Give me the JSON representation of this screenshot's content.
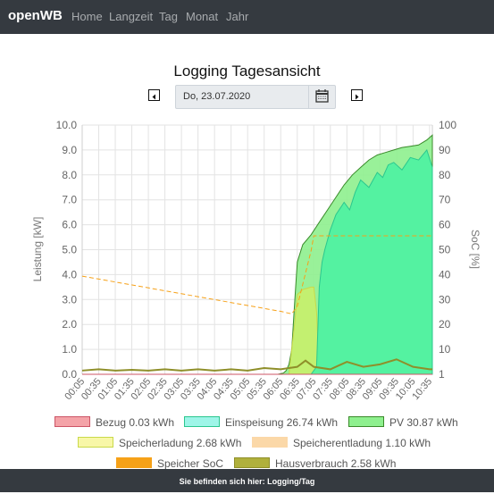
{
  "navbar": {
    "brand": "openWB",
    "links": [
      "Home",
      "Langzeit",
      "Tag",
      "Monat",
      "Jahr"
    ]
  },
  "page": {
    "title": "Logging Tagesansicht",
    "date_value": "Do, 23.07.2020"
  },
  "footer": {
    "text": "Sie befinden sich hier: Logging/Tag"
  },
  "colors": {
    "bezug": "#f4a3a8",
    "einspeisung": "#9ef5e8",
    "pv": "#8ef08e",
    "speicherladung": "#f8f7a8",
    "speicherentladung": "#fbd8a8",
    "speicher_soc": "#f6a118",
    "hausverbrauch": "#b0b03c"
  },
  "legend": [
    {
      "label": "Bezug 0.03 kWh",
      "color_key": "bezug"
    },
    {
      "label": "Einspeisung 26.74 kWh",
      "color_key": "einspeisung"
    },
    {
      "label": "PV 30.87 kWh",
      "color_key": "pv"
    },
    {
      "label": "Speicherladung 2.68 kWh",
      "color_key": "speicherladung"
    },
    {
      "label": "Speicherentladung 1.10 kWh",
      "color_key": "speicherentladung"
    },
    {
      "label": "Speicher SoC",
      "color_key": "speicher_soc"
    },
    {
      "label": "Hausverbrauch 2.58 kWh",
      "color_key": "hausverbrauch"
    }
  ],
  "chart_data": {
    "type": "area",
    "ylabel_left": "Leistung [kW]",
    "ylabel_right": "SoC [%]",
    "ylim_left": [
      0,
      10
    ],
    "ylim_right": [
      1,
      100
    ],
    "yticks_left": [
      "0.0",
      "1.0",
      "2.0",
      "3.0",
      "4.0",
      "5.0",
      "6.0",
      "7.0",
      "8.0",
      "9.0",
      "10.0"
    ],
    "yticks_right": [
      "1",
      "10",
      "20",
      "30",
      "40",
      "50",
      "60",
      "70",
      "80",
      "90",
      "100"
    ],
    "x_tick_labels": [
      "00:05",
      "00:35",
      "01:05",
      "01:35",
      "02:05",
      "02:35",
      "03:05",
      "03:35",
      "04:05",
      "04:35",
      "05:05",
      "05:35",
      "06:05",
      "06:35",
      "07:05",
      "07:35",
      "08:05",
      "08:35",
      "09:05",
      "09:35",
      "10:05",
      "10:35"
    ],
    "grid": true,
    "legend_position": "bottom",
    "series": [
      {
        "name": "PV",
        "color_key": "pv",
        "x": [
          "00:05",
          "06:00",
          "06:10",
          "06:15",
          "06:20",
          "06:25",
          "06:30",
          "06:35",
          "06:45",
          "07:00",
          "07:15",
          "07:30",
          "07:45",
          "08:00",
          "08:15",
          "08:30",
          "08:45",
          "09:00",
          "09:15",
          "09:30",
          "09:45",
          "10:00",
          "10:15",
          "10:30",
          "10:40"
        ],
        "values": [
          0.0,
          0.0,
          0.05,
          0.15,
          0.4,
          1.0,
          2.8,
          4.5,
          5.2,
          5.6,
          6.1,
          6.6,
          7.1,
          7.6,
          8.0,
          8.3,
          8.6,
          8.8,
          8.9,
          9.0,
          9.1,
          9.15,
          9.2,
          9.4,
          9.6
        ]
      },
      {
        "name": "Einspeisung",
        "color_key": "einspeisung",
        "x": [
          "00:05",
          "07:00",
          "07:10",
          "07:15",
          "07:20",
          "07:25",
          "07:35",
          "07:45",
          "08:00",
          "08:10",
          "08:20",
          "08:30",
          "08:45",
          "09:00",
          "09:10",
          "09:20",
          "09:30",
          "09:45",
          "10:00",
          "10:15",
          "10:30",
          "10:40"
        ],
        "values": [
          0.0,
          0.0,
          0.3,
          3.5,
          4.5,
          5.0,
          5.8,
          6.4,
          6.9,
          6.6,
          7.3,
          7.8,
          7.5,
          8.1,
          7.9,
          8.4,
          8.5,
          8.2,
          8.7,
          8.6,
          9.0,
          8.3
        ]
      },
      {
        "name": "Speicherladung",
        "color_key": "speicherladung",
        "x": [
          "00:05",
          "06:20",
          "06:30",
          "06:35",
          "06:45",
          "07:00",
          "07:05",
          "07:10",
          "07:15",
          "10:40"
        ],
        "values": [
          0.0,
          0.0,
          2.0,
          3.2,
          3.4,
          3.5,
          3.5,
          2.5,
          0.0,
          0.0
        ]
      },
      {
        "name": "Hausverbrauch",
        "color_key": "hausverbrauch",
        "x": [
          "00:05",
          "00:35",
          "01:05",
          "01:35",
          "02:05",
          "02:35",
          "03:05",
          "03:35",
          "04:05",
          "04:35",
          "05:05",
          "05:35",
          "06:05",
          "06:35",
          "06:50",
          "07:05",
          "07:35",
          "08:05",
          "08:35",
          "09:05",
          "09:35",
          "10:05",
          "10:35",
          "10:40"
        ],
        "values": [
          0.15,
          0.2,
          0.15,
          0.18,
          0.15,
          0.2,
          0.15,
          0.2,
          0.15,
          0.2,
          0.15,
          0.25,
          0.2,
          0.3,
          0.55,
          0.3,
          0.2,
          0.5,
          0.3,
          0.4,
          0.6,
          0.3,
          0.2,
          0.2
        ]
      },
      {
        "name": "Bezug",
        "color_key": "bezug",
        "x": [
          "00:05",
          "10:40"
        ],
        "values": [
          0.0,
          0.0
        ]
      },
      {
        "name": "Speicher SoC",
        "color_key": "speicher_soc",
        "axis": "right",
        "x": [
          "00:05",
          "06:05",
          "06:25",
          "06:35",
          "07:00",
          "07:05",
          "10:40"
        ],
        "values": [
          40,
          26,
          25,
          28,
          50,
          56,
          56
        ]
      }
    ]
  }
}
